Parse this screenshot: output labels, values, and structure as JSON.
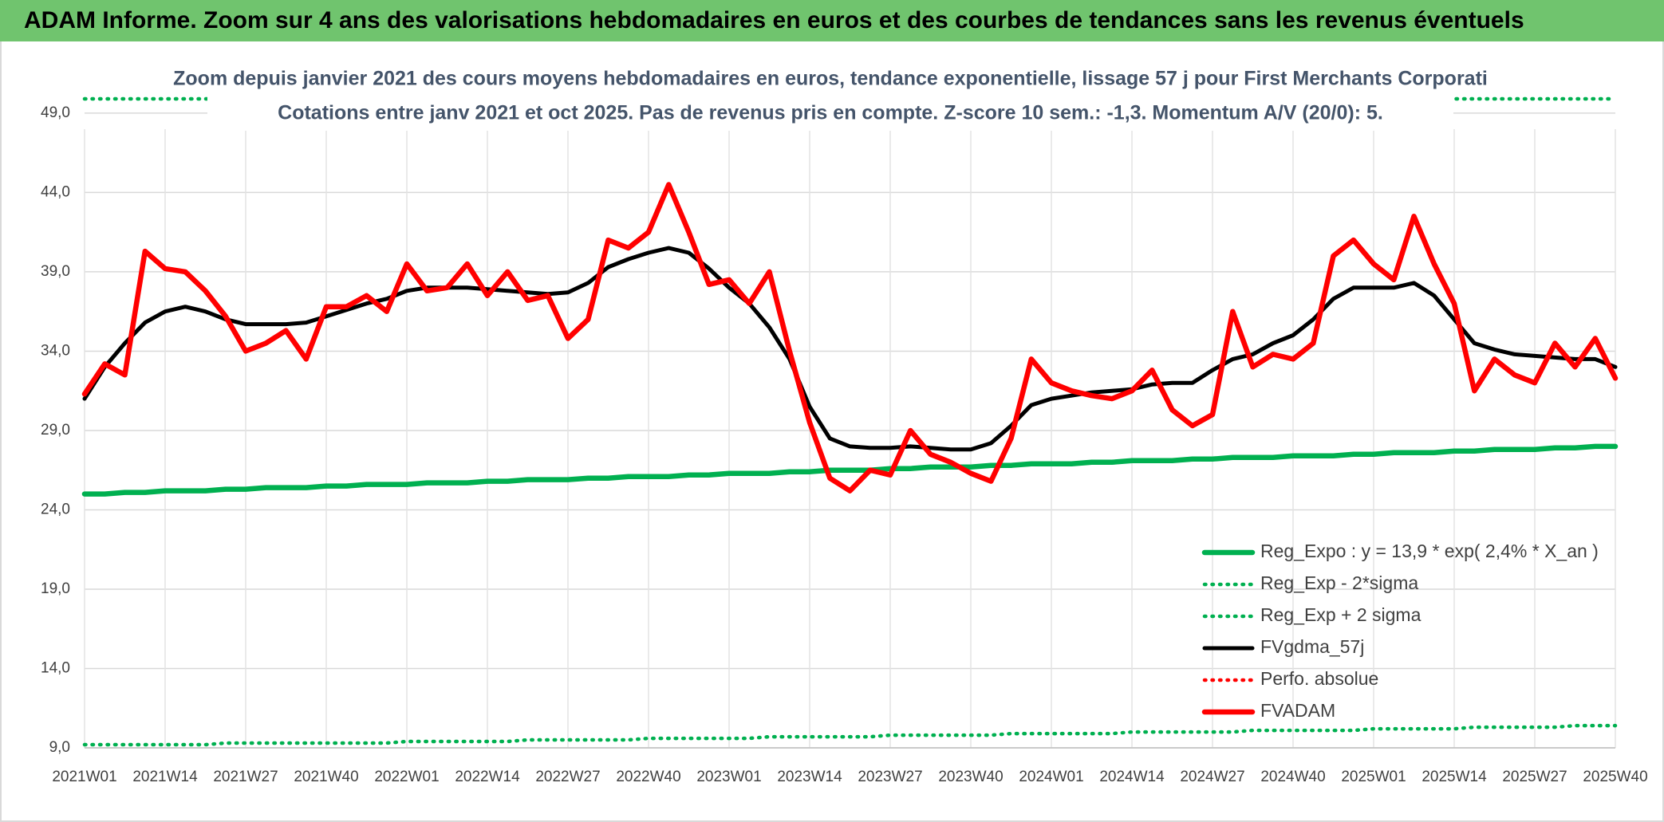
{
  "header": {
    "title": "ADAM Informe. Zoom sur 4 ans des valorisations hebdomadaires en euros et des courbes de tendances sans les revenus éventuels"
  },
  "chart_data": {
    "type": "line",
    "title": "Zoom depuis janvier 2021 des cours moyens hebdomadaires en euros, tendance exponentielle, lissage 57 j pour First Merchants Corporati",
    "subtitle": "Cotations entre janv 2021 et oct 2025. Pas de revenus pris en compte. Z-score 10 sem.: -1,3. Momentum A/V (20/0): 5.",
    "categories": [
      "2021W01",
      null,
      null,
      null,
      "2021W14",
      null,
      null,
      null,
      "2021W27",
      null,
      null,
      null,
      "2021W40",
      null,
      null,
      null,
      "2022W01",
      null,
      null,
      null,
      "2022W14",
      null,
      null,
      null,
      "2022W27",
      null,
      null,
      null,
      "2022W40",
      null,
      null,
      null,
      "2023W01",
      null,
      null,
      null,
      "2023W14",
      null,
      null,
      null,
      "2023W27",
      null,
      null,
      null,
      "2023W40",
      null,
      null,
      null,
      "2024W01",
      null,
      null,
      null,
      "2024W14",
      null,
      null,
      null,
      "2024W27",
      null,
      null,
      null,
      "2024W40",
      null,
      null,
      null,
      "2025W01",
      null,
      null,
      null,
      "2025W14",
      null,
      null,
      null,
      "2025W27",
      null,
      null,
      null,
      "2025W40"
    ],
    "ylim": [
      9,
      50
    ],
    "yticks": [
      {
        "value": 9,
        "label": "9,0"
      },
      {
        "value": 14,
        "label": "14,0"
      },
      {
        "value": 19,
        "label": "19,0"
      },
      {
        "value": 24,
        "label": "24,0"
      },
      {
        "value": 29,
        "label": "29,0"
      },
      {
        "value": 34,
        "label": "34,0"
      },
      {
        "value": 39,
        "label": "39,0"
      },
      {
        "value": 44,
        "label": "44,0"
      },
      {
        "value": 49,
        "label": "49,0"
      }
    ],
    "grid": true,
    "legend": "lower right",
    "series": [
      {
        "name": "Reg_Expo : y = 13,9 * exp( 2,4% *  X_an )",
        "color": "#00b050",
        "linestyle": "solid",
        "values": [
          25.0,
          25.0,
          25.1,
          25.1,
          25.2,
          25.2,
          25.2,
          25.3,
          25.3,
          25.4,
          25.4,
          25.4,
          25.5,
          25.5,
          25.6,
          25.6,
          25.6,
          25.7,
          25.7,
          25.7,
          25.8,
          25.8,
          25.9,
          25.9,
          25.9,
          26.0,
          26.0,
          26.1,
          26.1,
          26.1,
          26.2,
          26.2,
          26.3,
          26.3,
          26.3,
          26.4,
          26.4,
          26.5,
          26.5,
          26.5,
          26.6,
          26.6,
          26.7,
          26.7,
          26.7,
          26.8,
          26.8,
          26.9,
          26.9,
          26.9,
          27.0,
          27.0,
          27.1,
          27.1,
          27.1,
          27.2,
          27.2,
          27.3,
          27.3,
          27.3,
          27.4,
          27.4,
          27.4,
          27.5,
          27.5,
          27.6,
          27.6,
          27.6,
          27.7,
          27.7,
          27.8,
          27.8,
          27.8,
          27.9,
          27.9,
          28.0,
          28.0
        ]
      },
      {
        "name": "Reg_Exp - 2*sigma",
        "color": "#00b050",
        "linestyle": "dotted",
        "values": [
          9.2,
          9.2,
          9.2,
          9.2,
          9.2,
          9.2,
          9.2,
          9.3,
          9.3,
          9.3,
          9.3,
          9.3,
          9.3,
          9.3,
          9.3,
          9.3,
          9.4,
          9.4,
          9.4,
          9.4,
          9.4,
          9.4,
          9.5,
          9.5,
          9.5,
          9.5,
          9.5,
          9.5,
          9.6,
          9.6,
          9.6,
          9.6,
          9.6,
          9.6,
          9.7,
          9.7,
          9.7,
          9.7,
          9.7,
          9.7,
          9.8,
          9.8,
          9.8,
          9.8,
          9.8,
          9.8,
          9.9,
          9.9,
          9.9,
          9.9,
          9.9,
          9.9,
          10.0,
          10.0,
          10.0,
          10.0,
          10.0,
          10.0,
          10.1,
          10.1,
          10.1,
          10.1,
          10.1,
          10.1,
          10.2,
          10.2,
          10.2,
          10.2,
          10.2,
          10.3,
          10.3,
          10.3,
          10.3,
          10.3,
          10.4,
          10.4,
          10.4
        ]
      },
      {
        "name": "Reg_Exp + 2 sigma",
        "color": "#00b050",
        "linestyle": "dotted",
        "values": [
          49.9,
          49.9,
          49.9,
          49.9,
          49.9,
          49.9,
          49.9,
          49.9,
          49.9,
          49.9,
          49.9,
          49.9,
          49.9,
          49.9,
          49.9,
          49.9,
          49.9,
          49.9,
          49.9,
          49.9,
          49.9,
          49.9,
          49.9,
          49.9,
          49.9,
          49.9,
          49.9,
          49.9,
          49.9,
          49.9,
          49.9,
          49.9,
          49.9,
          49.9,
          49.9,
          49.9,
          49.9,
          49.9,
          49.9,
          49.9,
          49.9,
          49.9,
          49.9,
          49.9,
          49.9,
          49.9,
          49.9,
          49.9,
          49.9,
          49.9,
          49.9,
          49.9,
          49.9,
          49.9,
          49.9,
          49.9,
          49.9,
          49.9,
          49.9,
          49.9,
          49.9,
          49.9,
          49.9,
          49.9,
          49.9,
          49.9,
          49.9,
          49.9,
          49.9,
          49.9,
          49.9,
          49.9,
          49.9,
          49.9,
          49.9,
          49.9,
          49.9
        ]
      },
      {
        "name": "FVgdma_57j",
        "color": "#000000",
        "linestyle": "solid",
        "values": [
          31.0,
          33.0,
          34.5,
          35.8,
          36.5,
          36.8,
          36.5,
          36.0,
          35.7,
          35.7,
          35.7,
          35.8,
          36.2,
          36.6,
          37.0,
          37.3,
          37.8,
          38.0,
          38.0,
          38.0,
          37.9,
          37.8,
          37.7,
          37.6,
          37.7,
          38.3,
          39.3,
          39.8,
          40.2,
          40.5,
          40.2,
          39.2,
          38.0,
          37.0,
          35.5,
          33.5,
          30.5,
          28.5,
          28.0,
          27.9,
          27.9,
          28.0,
          27.9,
          27.8,
          27.8,
          28.2,
          29.3,
          30.6,
          31.0,
          31.2,
          31.4,
          31.5,
          31.6,
          31.9,
          32.0,
          32.0,
          32.8,
          33.5,
          33.8,
          34.5,
          35.0,
          36.0,
          37.3,
          38.0,
          38.0,
          38.0,
          38.3,
          37.5,
          36.0,
          34.5,
          34.1,
          33.8,
          33.7,
          33.6,
          33.5,
          33.5,
          33.0
        ]
      },
      {
        "name": "Perfo. absolue",
        "color": "#ff0000",
        "linestyle": "dotted",
        "values": [
          null,
          null,
          null,
          null,
          null,
          null,
          null,
          null,
          null,
          null,
          null,
          null,
          null,
          null,
          null,
          null,
          null,
          null,
          null,
          null,
          null,
          null,
          null,
          null,
          null,
          null,
          null,
          null,
          null,
          null,
          null,
          null,
          null,
          null,
          null,
          null,
          null,
          null,
          null,
          null,
          null,
          null,
          null,
          null,
          null,
          null,
          null,
          null,
          null,
          null,
          null,
          null,
          null,
          null,
          null,
          null,
          null,
          null,
          null,
          null,
          null,
          null,
          null,
          null,
          null,
          null,
          null,
          null,
          null,
          null,
          null,
          null,
          null,
          null,
          null,
          null,
          null
        ]
      },
      {
        "name": "FVADAM",
        "color": "#ff0000",
        "linestyle": "solid",
        "values": [
          31.3,
          33.2,
          32.5,
          40.3,
          39.2,
          39.0,
          37.8,
          36.2,
          34.0,
          34.5,
          35.3,
          33.5,
          36.8,
          36.8,
          37.5,
          36.5,
          39.5,
          37.8,
          38.0,
          39.5,
          37.5,
          39.0,
          37.2,
          37.5,
          34.8,
          36.0,
          41.0,
          40.5,
          41.5,
          44.5,
          41.5,
          38.2,
          38.5,
          37.0,
          39.0,
          34.0,
          29.5,
          26.0,
          25.2,
          26.5,
          26.2,
          29.0,
          27.5,
          27.0,
          26.3,
          25.8,
          28.5,
          33.5,
          32.0,
          31.5,
          31.2,
          31.0,
          31.5,
          32.8,
          30.3,
          29.3,
          30.0,
          36.5,
          33.0,
          33.8,
          33.5,
          34.5,
          40.0,
          41.0,
          39.5,
          38.5,
          42.5,
          39.5,
          37.0,
          31.5,
          33.5,
          32.5,
          32.0,
          34.5,
          33.0,
          34.8,
          32.3
        ]
      }
    ]
  }
}
